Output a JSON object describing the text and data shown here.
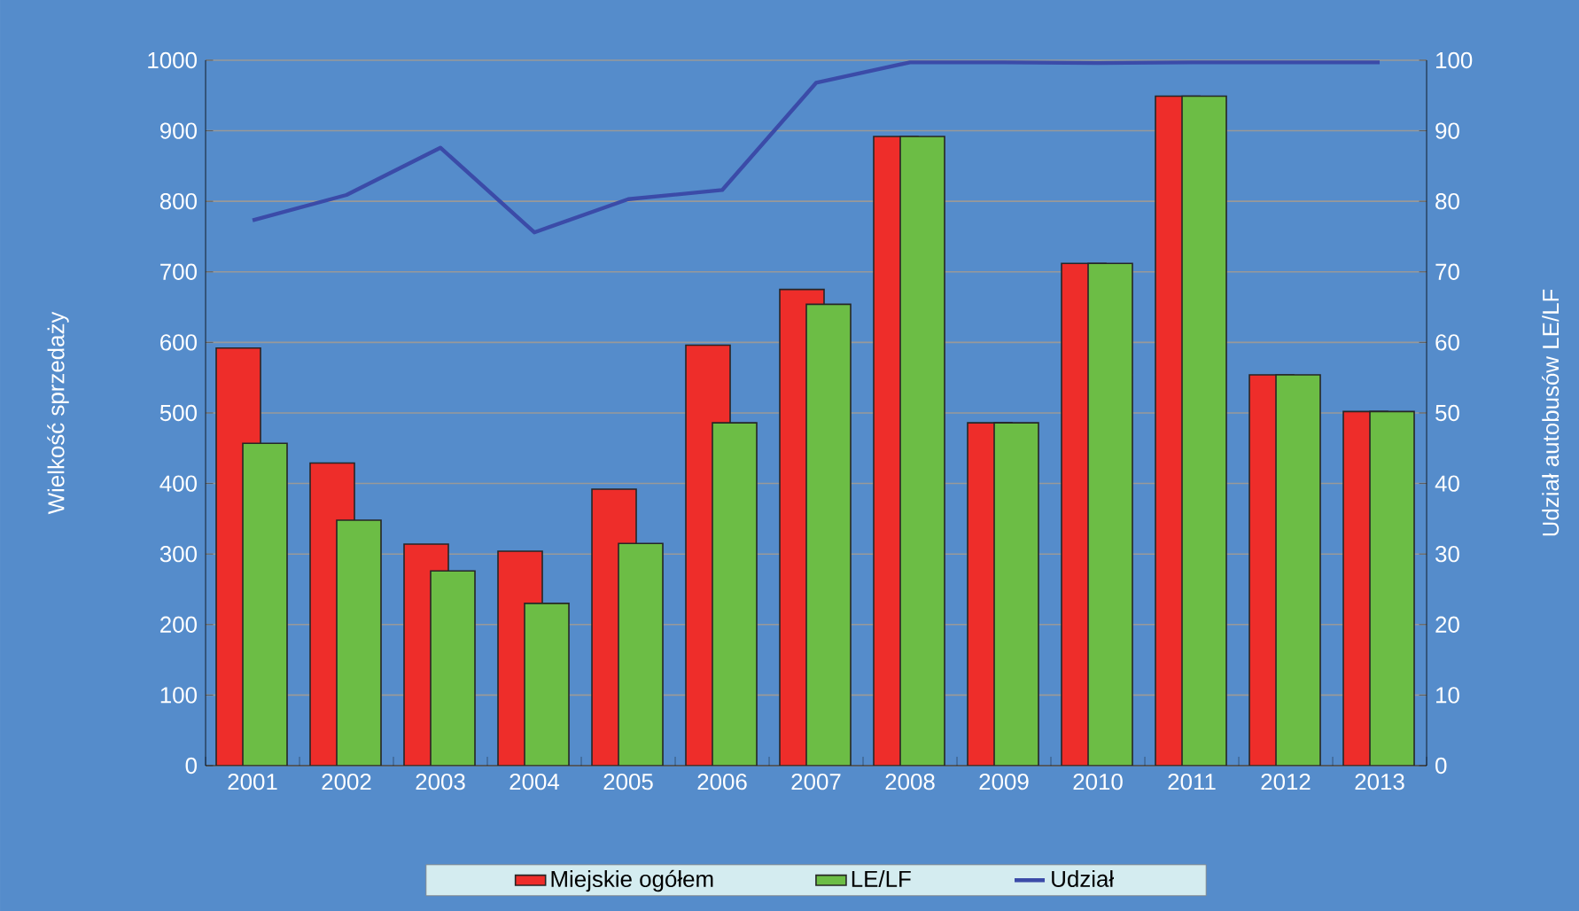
{
  "chart_data": {
    "type": "bar",
    "ylabel": "Wielkość sprzedaży",
    "y2label": "Udział autobusów LE/LF",
    "categories": [
      "2001",
      "2002",
      "2003",
      "2004",
      "2005",
      "2006",
      "2007",
      "2008",
      "2009",
      "2010",
      "2011",
      "2012",
      "2013"
    ],
    "series": [
      {
        "name": "Miejskie ogółem",
        "color": "#ee2d2a",
        "values": [
          592,
          429,
          314,
          304,
          392,
          596,
          675,
          892,
          486,
          712,
          949,
          554,
          502
        ]
      },
      {
        "name": "LE/LF",
        "color": "#6cbd45",
        "values": [
          457,
          348,
          276,
          230,
          315,
          486,
          654,
          892,
          486,
          712,
          949,
          554,
          502
        ]
      },
      {
        "name": "Udział",
        "type": "line",
        "axis": "y2",
        "color": "#3b4ba8",
        "values": [
          77.3,
          80.9,
          87.6,
          75.6,
          80.3,
          81.6,
          96.8,
          99.7,
          99.7,
          99.6,
          99.7,
          99.7,
          99.7
        ]
      }
    ],
    "ylim": [
      0,
      1000
    ],
    "yticks": [
      0,
      100,
      200,
      300,
      400,
      500,
      600,
      700,
      800,
      900,
      1000
    ],
    "y2lim": [
      0,
      100
    ],
    "y2ticks": [
      0,
      10,
      20,
      30,
      40,
      50,
      60,
      70,
      80,
      90,
      100
    ],
    "grid": "y",
    "legend": "bottom",
    "marker": "none",
    "line_style": "solid"
  }
}
